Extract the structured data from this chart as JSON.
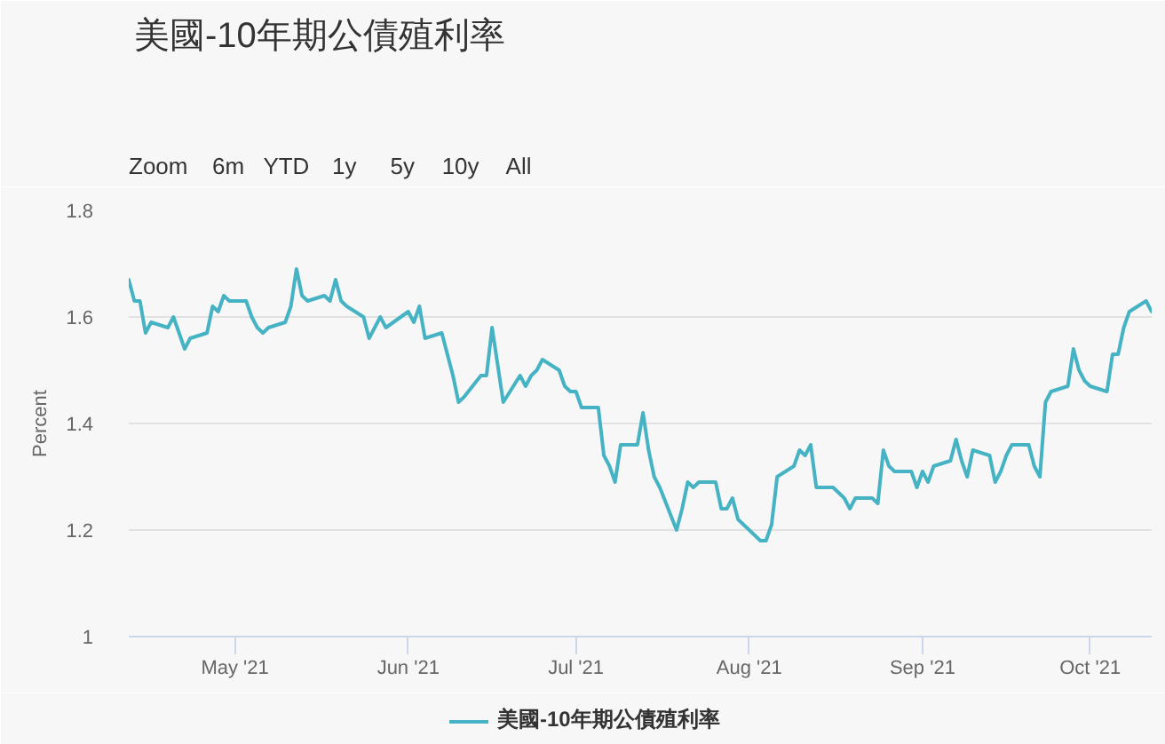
{
  "chart_data": {
    "type": "line",
    "title": "美國-10年期公債殖利率",
    "ylabel": "Percent",
    "annotations": [
      "Zoom",
      "6m",
      "YTD",
      "1y",
      "5y",
      "10y",
      "All"
    ],
    "x": [
      "2021-04-12",
      "2021-04-13",
      "2021-04-14",
      "2021-04-15",
      "2021-04-16",
      "2021-04-19",
      "2021-04-20",
      "2021-04-21",
      "2021-04-22",
      "2021-04-23",
      "2021-04-26",
      "2021-04-27",
      "2021-04-28",
      "2021-04-29",
      "2021-04-30",
      "2021-05-03",
      "2021-05-04",
      "2021-05-05",
      "2021-05-06",
      "2021-05-07",
      "2021-05-10",
      "2021-05-11",
      "2021-05-12",
      "2021-05-13",
      "2021-05-14",
      "2021-05-17",
      "2021-05-18",
      "2021-05-19",
      "2021-05-20",
      "2021-05-21",
      "2021-05-24",
      "2021-05-25",
      "2021-05-26",
      "2021-05-27",
      "2021-05-28",
      "2021-06-01",
      "2021-06-02",
      "2021-06-03",
      "2021-06-04",
      "2021-06-07",
      "2021-06-08",
      "2021-06-09",
      "2021-06-10",
      "2021-06-11",
      "2021-06-14",
      "2021-06-15",
      "2021-06-16",
      "2021-06-17",
      "2021-06-18",
      "2021-06-21",
      "2021-06-22",
      "2021-06-23",
      "2021-06-24",
      "2021-06-25",
      "2021-06-28",
      "2021-06-29",
      "2021-06-30",
      "2021-07-01",
      "2021-07-02",
      "2021-07-05",
      "2021-07-06",
      "2021-07-07",
      "2021-07-08",
      "2021-07-09",
      "2021-07-12",
      "2021-07-13",
      "2021-07-14",
      "2021-07-15",
      "2021-07-16",
      "2021-07-19",
      "2021-07-20",
      "2021-07-21",
      "2021-07-22",
      "2021-07-23",
      "2021-07-26",
      "2021-07-27",
      "2021-07-28",
      "2021-07-29",
      "2021-07-30",
      "2021-08-02",
      "2021-08-03",
      "2021-08-04",
      "2021-08-05",
      "2021-08-06",
      "2021-08-09",
      "2021-08-10",
      "2021-08-11",
      "2021-08-12",
      "2021-08-13",
      "2021-08-16",
      "2021-08-17",
      "2021-08-18",
      "2021-08-19",
      "2021-08-20",
      "2021-08-23",
      "2021-08-24",
      "2021-08-25",
      "2021-08-26",
      "2021-08-27",
      "2021-08-30",
      "2021-08-31",
      "2021-09-01",
      "2021-09-02",
      "2021-09-03",
      "2021-09-06",
      "2021-09-07",
      "2021-09-08",
      "2021-09-09",
      "2021-09-10",
      "2021-09-13",
      "2021-09-14",
      "2021-09-15",
      "2021-09-16",
      "2021-09-17",
      "2021-09-20",
      "2021-09-21",
      "2021-09-22",
      "2021-09-23",
      "2021-09-24",
      "2021-09-27",
      "2021-09-28",
      "2021-09-29",
      "2021-09-30",
      "2021-10-01",
      "2021-10-04",
      "2021-10-05",
      "2021-10-06",
      "2021-10-07",
      "2021-10-08",
      "2021-10-11",
      "2021-10-12"
    ],
    "series": [
      {
        "name": "美國-10年期公債殖利率",
        "color": "#45b3c3",
        "values": [
          1.67,
          1.63,
          1.63,
          1.57,
          1.59,
          1.58,
          1.6,
          1.57,
          1.54,
          1.56,
          1.57,
          1.62,
          1.61,
          1.64,
          1.63,
          1.63,
          1.6,
          1.58,
          1.57,
          1.58,
          1.59,
          1.62,
          1.69,
          1.64,
          1.63,
          1.64,
          1.63,
          1.67,
          1.63,
          1.62,
          1.6,
          1.56,
          1.58,
          1.6,
          1.58,
          1.61,
          1.59,
          1.62,
          1.56,
          1.57,
          1.53,
          1.49,
          1.44,
          1.45,
          1.49,
          1.49,
          1.58,
          1.51,
          1.44,
          1.49,
          1.47,
          1.49,
          1.5,
          1.52,
          1.5,
          1.47,
          1.46,
          1.46,
          1.43,
          1.43,
          1.34,
          1.32,
          1.29,
          1.36,
          1.36,
          1.42,
          1.35,
          1.3,
          1.28,
          1.2,
          1.24,
          1.29,
          1.28,
          1.29,
          1.29,
          1.24,
          1.24,
          1.26,
          1.22,
          1.19,
          1.18,
          1.18,
          1.21,
          1.3,
          1.32,
          1.35,
          1.34,
          1.36,
          1.28,
          1.28,
          1.27,
          1.26,
          1.24,
          1.26,
          1.26,
          1.25,
          1.35,
          1.32,
          1.31,
          1.31,
          1.28,
          1.31,
          1.29,
          1.32,
          1.33,
          1.37,
          1.33,
          1.3,
          1.35,
          1.34,
          1.29,
          1.31,
          1.34,
          1.36,
          1.36,
          1.32,
          1.3,
          1.44,
          1.46,
          1.47,
          1.54,
          1.5,
          1.48,
          1.47,
          1.46,
          1.53,
          1.53,
          1.58,
          1.61,
          1.63,
          1.61
        ]
      }
    ],
    "xlim": [
      "2021-04-12",
      "2021-10-12"
    ],
    "xticks": [
      {
        "value": "2021-05-01",
        "label": "May '21"
      },
      {
        "value": "2021-06-01",
        "label": "Jun '21"
      },
      {
        "value": "2021-07-01",
        "label": "Jul '21"
      },
      {
        "value": "2021-08-01",
        "label": "Aug '21"
      },
      {
        "value": "2021-09-01",
        "label": "Sep '21"
      },
      {
        "value": "2021-10-01",
        "label": "Oct '21"
      }
    ],
    "ylim": [
      1,
      1.8
    ],
    "yticks": [
      1,
      1.2,
      1.4,
      1.6,
      1.8
    ],
    "grid": "y",
    "legend": "bottom"
  }
}
